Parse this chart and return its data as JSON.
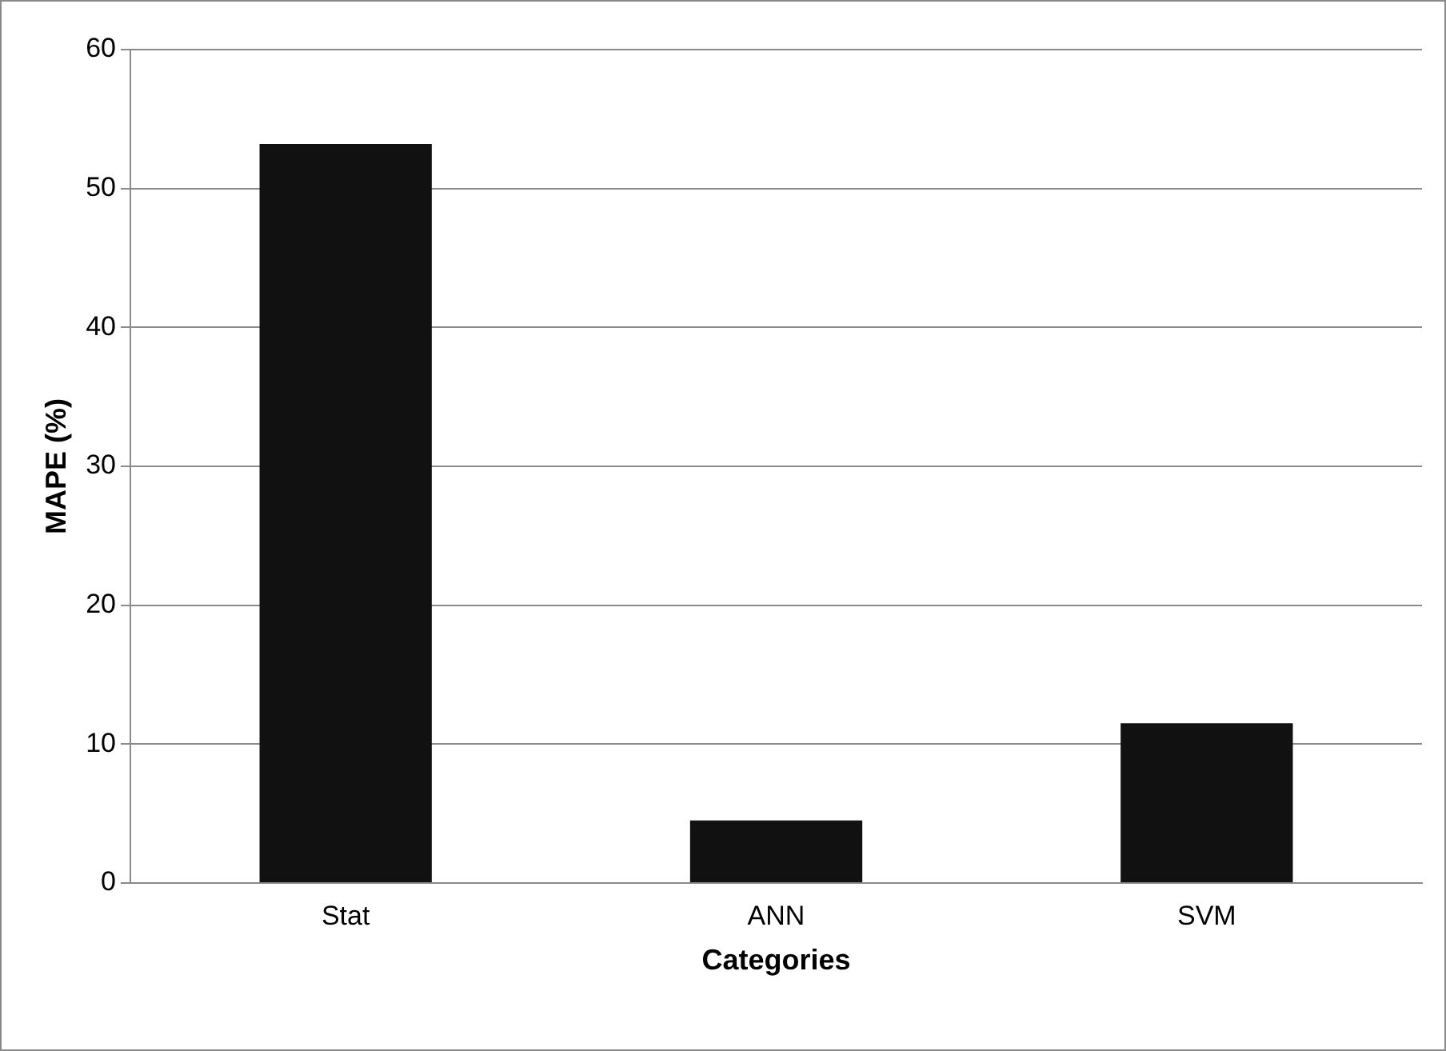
{
  "chart_data": {
    "type": "bar",
    "xlabel": "Categories",
    "ylabel": "MAPE (%)",
    "categories": [
      "Stat",
      "ANN",
      "SVM"
    ],
    "values": [
      53.2,
      4.5,
      11.5
    ],
    "color": "#111111",
    "ylim": [
      0,
      60
    ],
    "yticks": [
      0,
      10,
      20,
      30,
      40,
      50,
      60
    ],
    "grid": "y",
    "legend": false
  }
}
